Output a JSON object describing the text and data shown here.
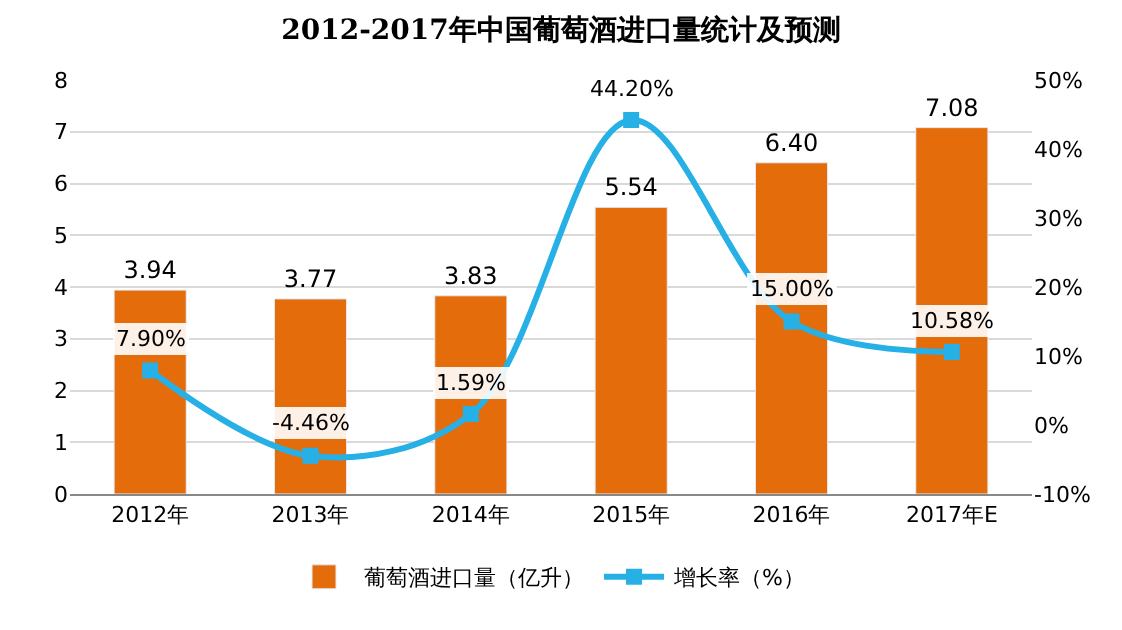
{
  "chart_data": {
    "type": "bar",
    "title": "2012-2017年中国葡萄酒进口量统计及预测",
    "categories": [
      "2012年",
      "2013年",
      "2014年",
      "2015年",
      "2016年",
      "2017年E"
    ],
    "series": [
      {
        "name": "葡萄酒进口量（亿升）",
        "color": "#e46c0a",
        "values": [
          3.94,
          3.77,
          3.83,
          5.54,
          6.4,
          7.08
        ],
        "value_labels": [
          "3.94",
          "3.77",
          "3.83",
          "5.54",
          "6.40",
          "7.08"
        ]
      },
      {
        "name": "增长率（%）",
        "type": "line",
        "axis": "y2",
        "color": "#27b0e6",
        "marker": "square",
        "values": [
          7.9,
          -4.46,
          1.59,
          44.2,
          15.0,
          10.58
        ],
        "value_labels": [
          "7.90%",
          "-4.46%",
          "1.59%",
          "44.20%",
          "15.00%",
          "10.58%"
        ]
      }
    ],
    "ylim": [
      0,
      8
    ],
    "yticks": [
      0,
      1,
      2,
      3,
      4,
      5,
      6,
      7,
      8
    ],
    "y2lim": [
      -10,
      50
    ],
    "y2ticks": [
      {
        "value": -10,
        "label": "-10%"
      },
      {
        "value": 0,
        "label": "0%"
      },
      {
        "value": 10,
        "label": "10%"
      },
      {
        "value": 20,
        "label": "20%"
      },
      {
        "value": 30,
        "label": "30%"
      },
      {
        "value": 40,
        "label": "40%"
      },
      {
        "value": 50,
        "label": "50%"
      }
    ],
    "grid": "y",
    "legend": "bottom"
  }
}
